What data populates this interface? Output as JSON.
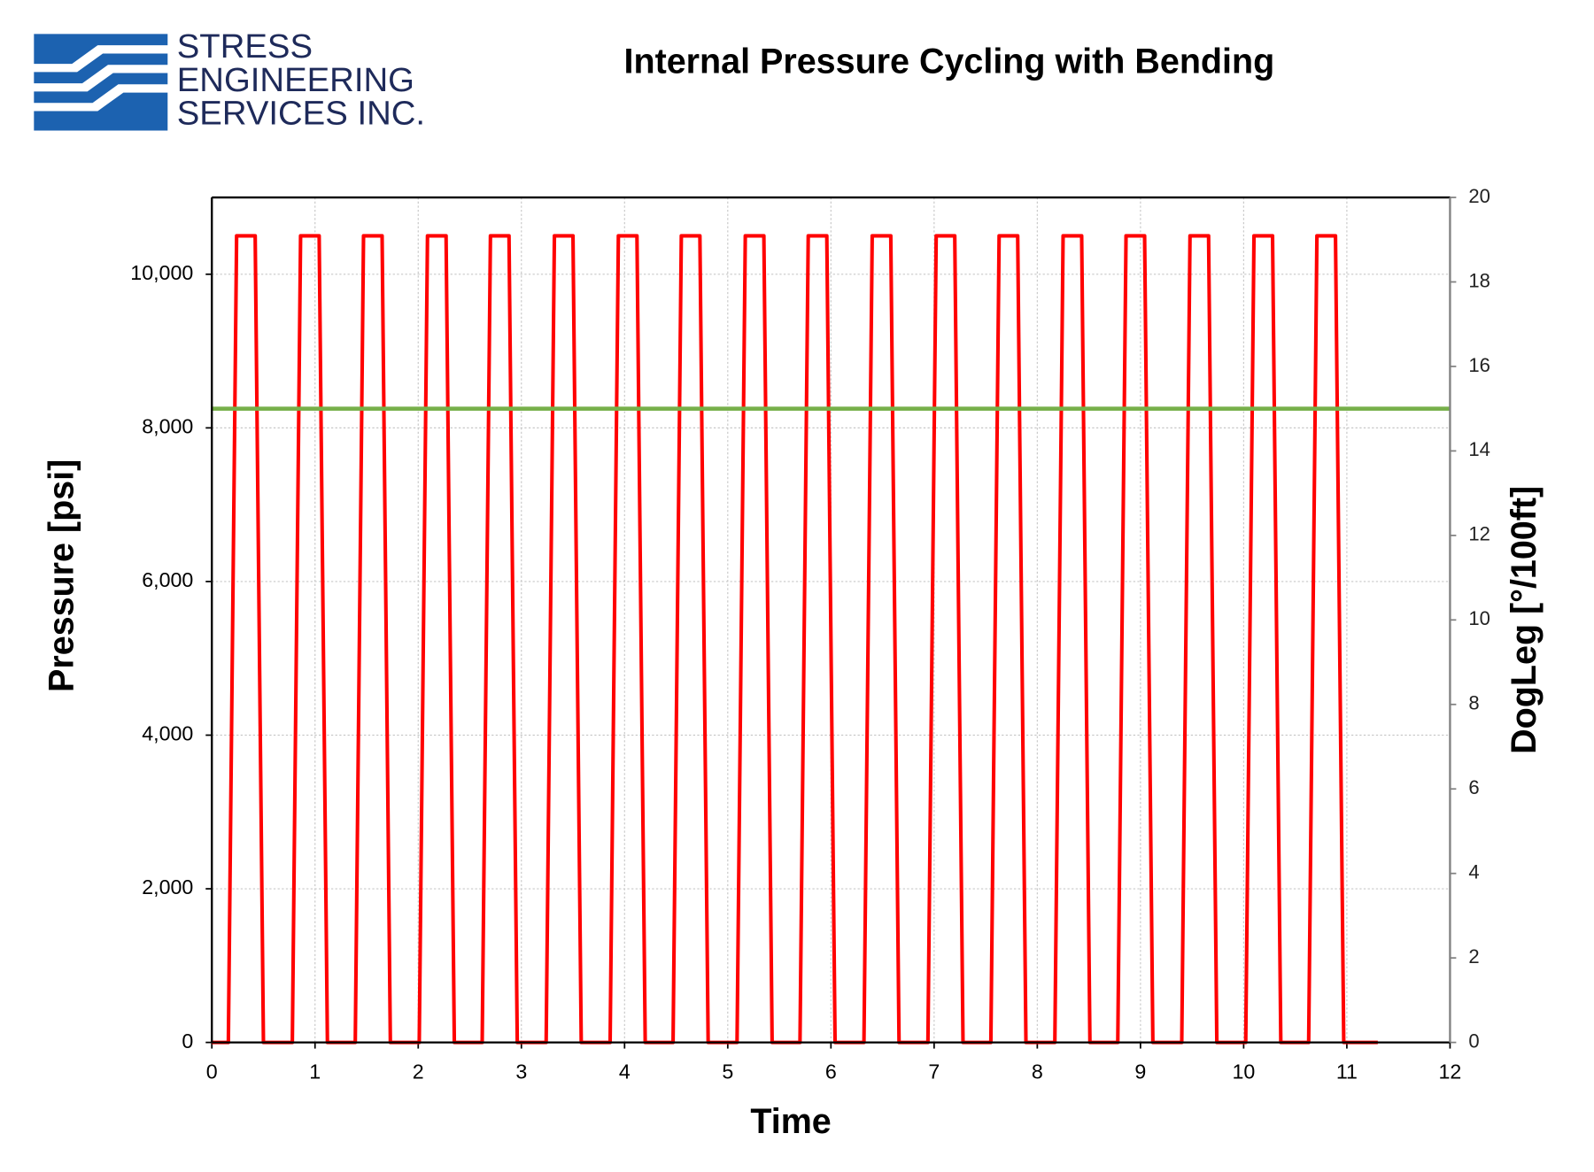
{
  "logo": {
    "lines": [
      "STRESS",
      "ENGINEERING",
      "SERVICES INC."
    ]
  },
  "chart_data": {
    "type": "line",
    "title": "Internal Pressure Cycling with Bending",
    "xlabel": "Time",
    "ylabel": "Pressure [psi]",
    "y2label": "DogLeg [°/100ft]",
    "xlim": [
      0,
      12
    ],
    "xticks": [
      0,
      1,
      2,
      3,
      4,
      5,
      6,
      7,
      8,
      9,
      10,
      11,
      12
    ],
    "ylim": [
      0,
      11000
    ],
    "yticks": [
      0,
      {
        "value": 2000,
        "label": "2,000"
      },
      {
        "value": 4000,
        "label": "4,000"
      },
      {
        "value": 6000,
        "label": "6,000"
      },
      {
        "value": 8000,
        "label": "8,000"
      },
      {
        "value": 10000,
        "label": "10,000"
      }
    ],
    "y2lim": [
      0,
      20
    ],
    "y2ticks": [
      0,
      2,
      4,
      6,
      8,
      10,
      12,
      14,
      16,
      18,
      20
    ],
    "grid": true,
    "series": [
      {
        "color": "#ff0000",
        "x": [
          0,
          0.16,
          0.24,
          0.42,
          0.5,
          0.78,
          0.86,
          1.04,
          1.12,
          1.39,
          1.47,
          1.65,
          1.73,
          2.01,
          2.09,
          2.27,
          2.35,
          2.62,
          2.7,
          2.88,
          2.96,
          3.24,
          3.32,
          3.5,
          3.58,
          3.86,
          3.94,
          4.12,
          4.2,
          4.47,
          4.55,
          4.73,
          4.81,
          5.09,
          5.17,
          5.35,
          5.43,
          5.7,
          5.78,
          5.96,
          6.04,
          6.32,
          6.4,
          6.58,
          6.66,
          6.94,
          7.02,
          7.2,
          7.28,
          7.55,
          7.63,
          7.81,
          7.89,
          8.17,
          8.25,
          8.43,
          8.51,
          8.78,
          8.86,
          9.04,
          9.12,
          9.4,
          9.48,
          9.66,
          9.74,
          10.02,
          10.1,
          10.28,
          10.36,
          10.63,
          10.71,
          10.89,
          10.97,
          11.3
        ],
        "values": [
          0,
          0,
          10500,
          10500,
          0,
          0,
          10500,
          10500,
          0,
          0,
          10500,
          10500,
          0,
          0,
          10500,
          10500,
          0,
          0,
          10500,
          10500,
          0,
          0,
          10500,
          10500,
          0,
          0,
          10500,
          10500,
          0,
          0,
          10500,
          10500,
          0,
          0,
          10500,
          10500,
          0,
          0,
          10500,
          10500,
          0,
          0,
          10500,
          10500,
          0,
          0,
          10500,
          10500,
          0,
          0,
          10500,
          10500,
          0,
          0,
          10500,
          10500,
          0,
          0,
          10500,
          10500,
          0,
          0,
          10500,
          10500,
          0,
          0,
          10500,
          10500,
          0,
          0,
          10500,
          10500,
          0,
          0
        ]
      },
      {
        "color": "#77b04a",
        "axis": "y2",
        "x": [
          0,
          12
        ],
        "values": [
          15,
          15
        ]
      }
    ]
  }
}
